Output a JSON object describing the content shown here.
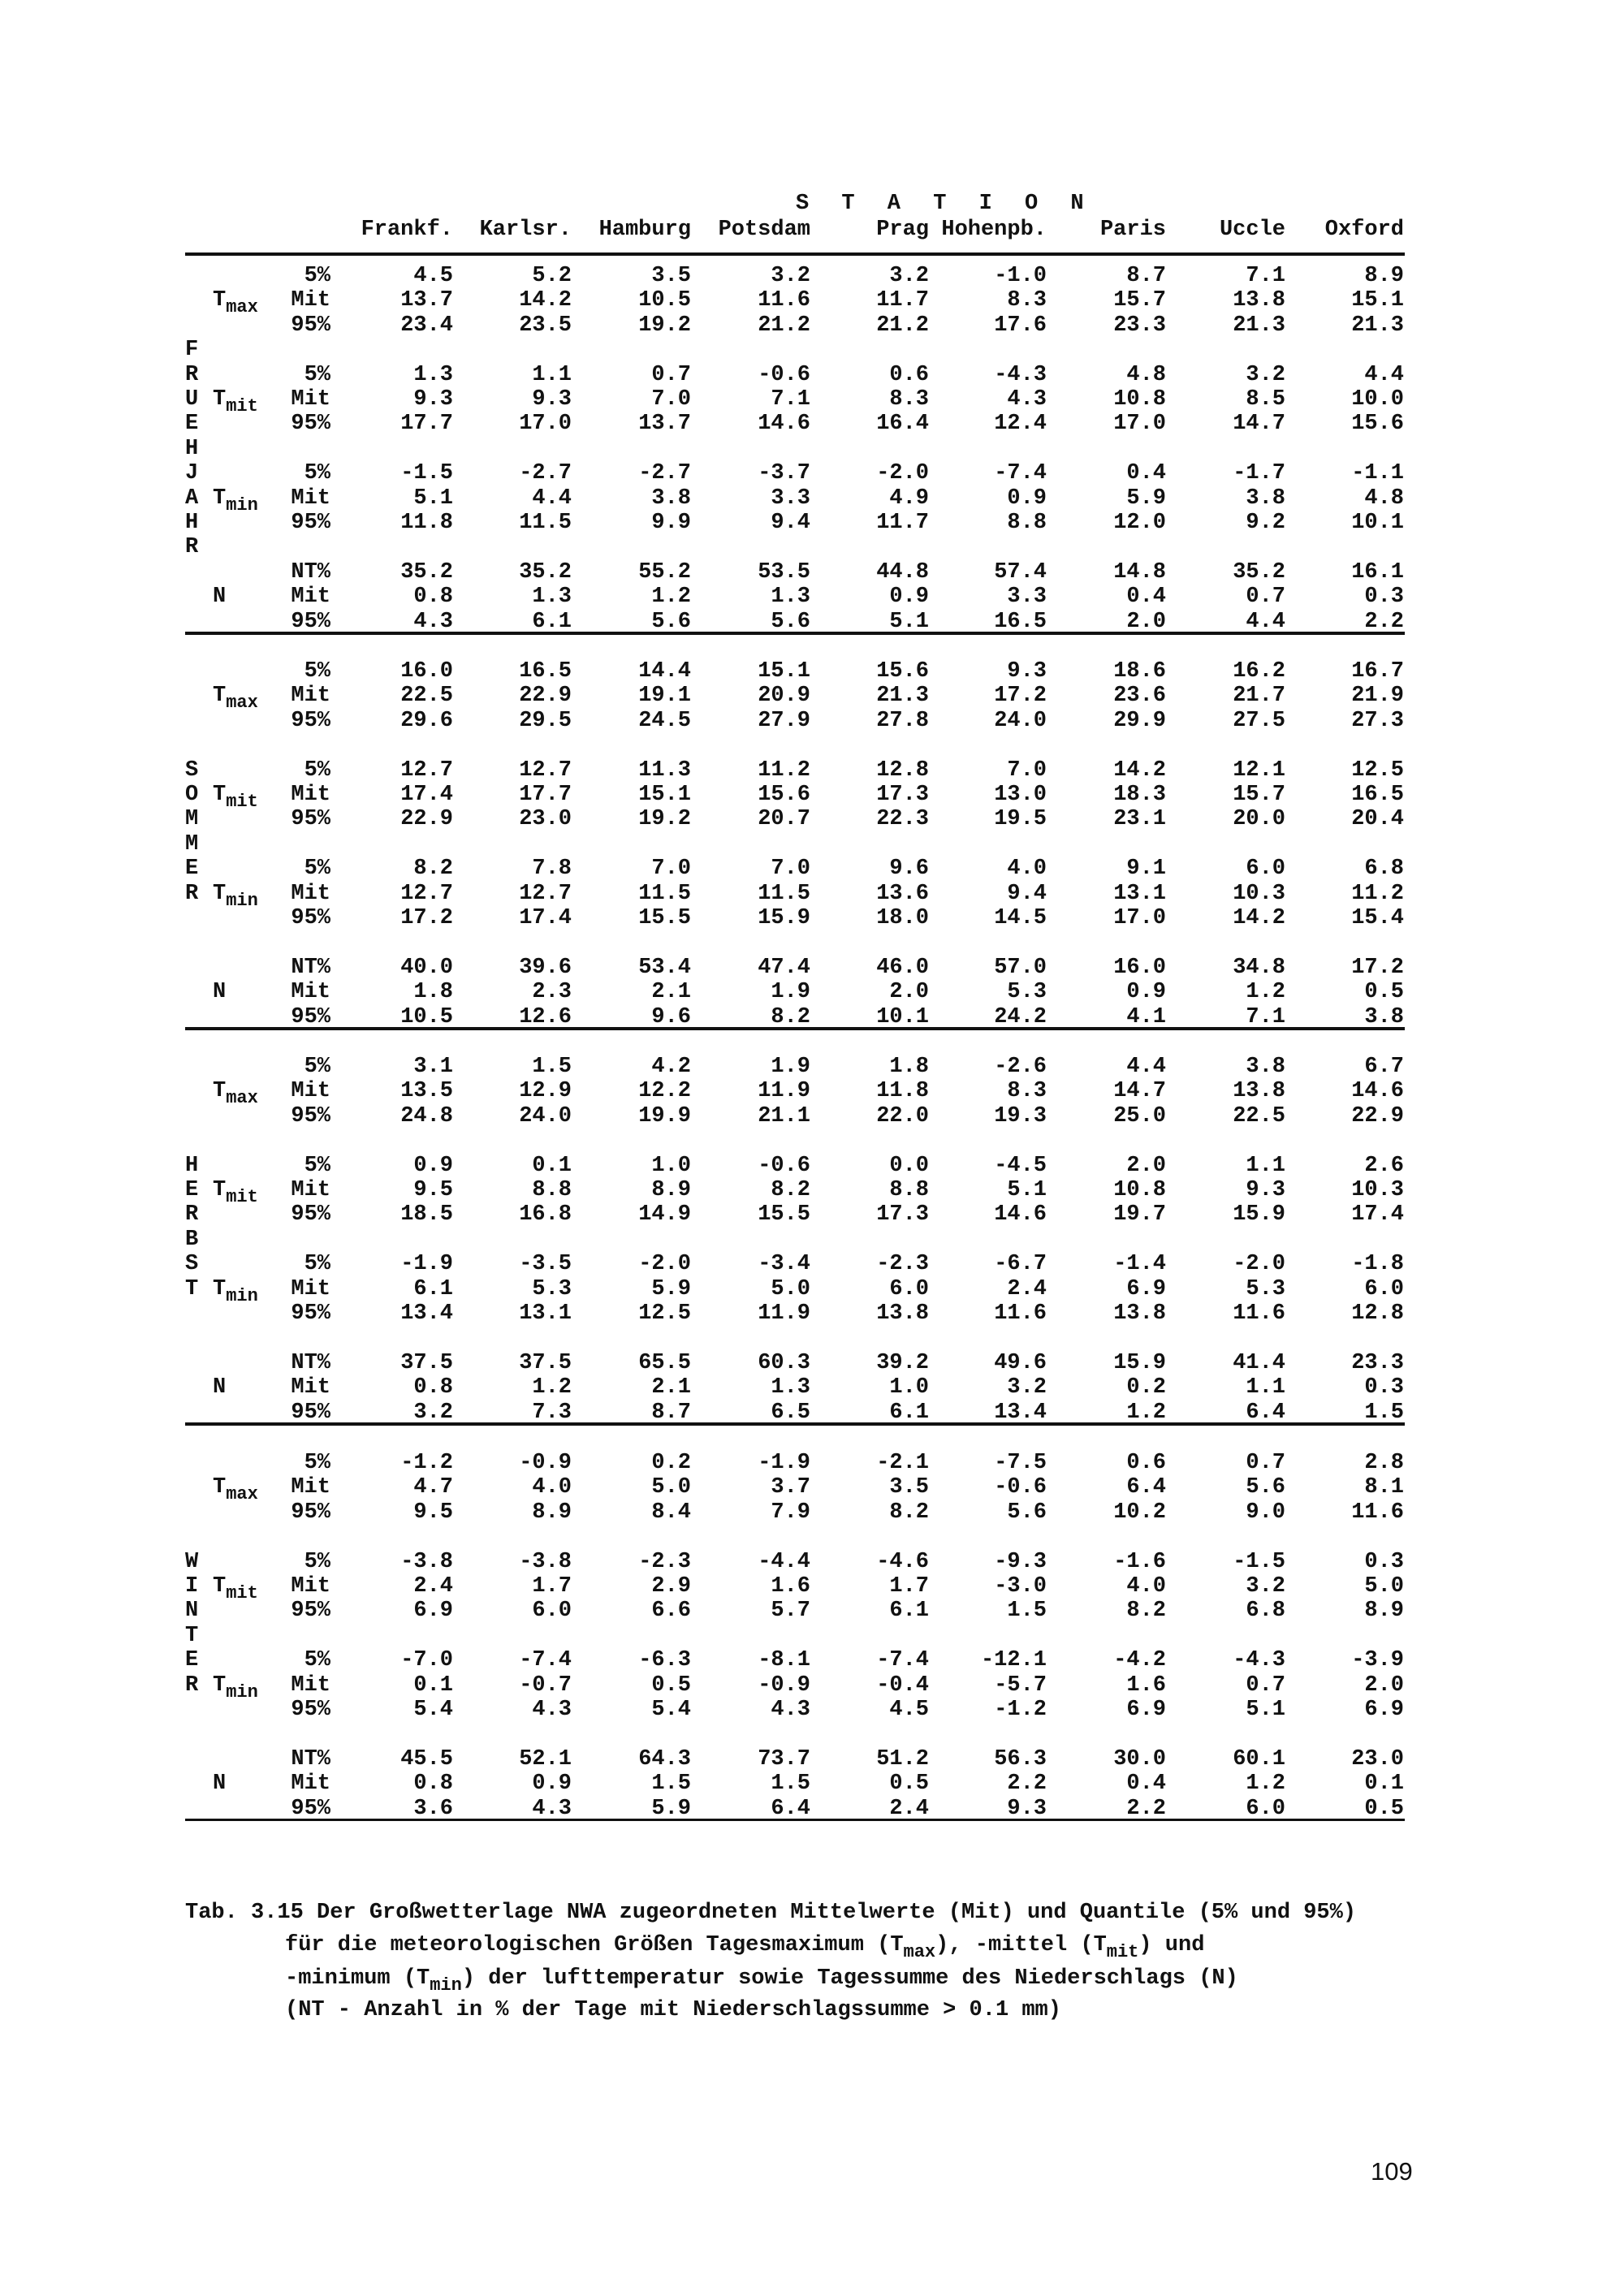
{
  "header": {
    "station_title": "S T A T I O N",
    "stations": [
      "Frankf.",
      "Karlsr.",
      "Hamburg",
      "Potsdam",
      "Prag",
      "Hohenpb.",
      "Paris",
      "Uccle",
      "Oxford"
    ]
  },
  "seasons": [
    {
      "letters": [
        "F",
        "R",
        "U",
        "E",
        "H",
        "J",
        "A",
        "H",
        "R"
      ],
      "letters_start_line": 3,
      "groups": [
        {
          "var": "T",
          "sub": "max",
          "rows": [
            {
              "stat": "5%",
              "values": [
                "4.5",
                "5.2",
                "3.5",
                "3.2",
                "3.2",
                "-1.0",
                "8.7",
                "7.1",
                "8.9"
              ]
            },
            {
              "stat": "Mit",
              "values": [
                "13.7",
                "14.2",
                "10.5",
                "11.6",
                "11.7",
                "8.3",
                "15.7",
                "13.8",
                "15.1"
              ]
            },
            {
              "stat": "95%",
              "values": [
                "23.4",
                "23.5",
                "19.2",
                "21.2",
                "21.2",
                "17.6",
                "23.3",
                "21.3",
                "21.3"
              ]
            }
          ]
        },
        {
          "var": "T",
          "sub": "mit",
          "rows": [
            {
              "stat": "5%",
              "values": [
                "1.3",
                "1.1",
                "0.7",
                "-0.6",
                "0.6",
                "-4.3",
                "4.8",
                "3.2",
                "4.4"
              ]
            },
            {
              "stat": "Mit",
              "values": [
                "9.3",
                "9.3",
                "7.0",
                "7.1",
                "8.3",
                "4.3",
                "10.8",
                "8.5",
                "10.0"
              ]
            },
            {
              "stat": "95%",
              "values": [
                "17.7",
                "17.0",
                "13.7",
                "14.6",
                "16.4",
                "12.4",
                "17.0",
                "14.7",
                "15.6"
              ]
            }
          ]
        },
        {
          "var": "T",
          "sub": "min",
          "rows": [
            {
              "stat": "5%",
              "values": [
                "-1.5",
                "-2.7",
                "-2.7",
                "-3.7",
                "-2.0",
                "-7.4",
                "0.4",
                "-1.7",
                "-1.1"
              ]
            },
            {
              "stat": "Mit",
              "values": [
                "5.1",
                "4.4",
                "3.8",
                "3.3",
                "4.9",
                "0.9",
                "5.9",
                "3.8",
                "4.8"
              ]
            },
            {
              "stat": "95%",
              "values": [
                "11.8",
                "11.5",
                "9.9",
                "9.4",
                "11.7",
                "8.8",
                "12.0",
                "9.2",
                "10.1"
              ]
            }
          ]
        },
        {
          "var": "N",
          "sub": "",
          "rows": [
            {
              "stat": "NT%",
              "values": [
                "35.2",
                "35.2",
                "55.2",
                "53.5",
                "44.8",
                "57.4",
                "14.8",
                "35.2",
                "16.1"
              ]
            },
            {
              "stat": "Mit",
              "values": [
                "0.8",
                "1.3",
                "1.2",
                "1.3",
                "0.9",
                "3.3",
                "0.4",
                "0.7",
                "0.3"
              ]
            },
            {
              "stat": "95%",
              "values": [
                "4.3",
                "6.1",
                "5.6",
                "5.6",
                "5.1",
                "16.5",
                "2.0",
                "4.4",
                "2.2"
              ]
            }
          ]
        }
      ]
    },
    {
      "letters": [
        "S",
        "O",
        "M",
        "M",
        "E",
        "R"
      ],
      "letters_start_line": 4,
      "groups": [
        {
          "var": "T",
          "sub": "max",
          "rows": [
            {
              "stat": "5%",
              "values": [
                "16.0",
                "16.5",
                "14.4",
                "15.1",
                "15.6",
                "9.3",
                "18.6",
                "16.2",
                "16.7"
              ]
            },
            {
              "stat": "Mit",
              "values": [
                "22.5",
                "22.9",
                "19.1",
                "20.9",
                "21.3",
                "17.2",
                "23.6",
                "21.7",
                "21.9"
              ]
            },
            {
              "stat": "95%",
              "values": [
                "29.6",
                "29.5",
                "24.5",
                "27.9",
                "27.8",
                "24.0",
                "29.9",
                "27.5",
                "27.3"
              ]
            }
          ]
        },
        {
          "var": "T",
          "sub": "mit",
          "rows": [
            {
              "stat": "5%",
              "values": [
                "12.7",
                "12.7",
                "11.3",
                "11.2",
                "12.8",
                "7.0",
                "14.2",
                "12.1",
                "12.5"
              ]
            },
            {
              "stat": "Mit",
              "values": [
                "17.4",
                "17.7",
                "15.1",
                "15.6",
                "17.3",
                "13.0",
                "18.3",
                "15.7",
                "16.5"
              ]
            },
            {
              "stat": "95%",
              "values": [
                "22.9",
                "23.0",
                "19.2",
                "20.7",
                "22.3",
                "19.5",
                "23.1",
                "20.0",
                "20.4"
              ]
            }
          ]
        },
        {
          "var": "T",
          "sub": "min",
          "rows": [
            {
              "stat": "5%",
              "values": [
                "8.2",
                "7.8",
                "7.0",
                "7.0",
                "9.6",
                "4.0",
                "9.1",
                "6.0",
                "6.8"
              ]
            },
            {
              "stat": "Mit",
              "values": [
                "12.7",
                "12.7",
                "11.5",
                "11.5",
                "13.6",
                "9.4",
                "13.1",
                "10.3",
                "11.2"
              ]
            },
            {
              "stat": "95%",
              "values": [
                "17.2",
                "17.4",
                "15.5",
                "15.9",
                "18.0",
                "14.5",
                "17.0",
                "14.2",
                "15.4"
              ]
            }
          ]
        },
        {
          "var": "N",
          "sub": "",
          "rows": [
            {
              "stat": "NT%",
              "values": [
                "40.0",
                "39.6",
                "53.4",
                "47.4",
                "46.0",
                "57.0",
                "16.0",
                "34.8",
                "17.2"
              ]
            },
            {
              "stat": "Mit",
              "values": [
                "1.8",
                "2.3",
                "2.1",
                "1.9",
                "2.0",
                "5.3",
                "0.9",
                "1.2",
                "0.5"
              ]
            },
            {
              "stat": "95%",
              "values": [
                "10.5",
                "12.6",
                "9.6",
                "8.2",
                "10.1",
                "24.2",
                "4.1",
                "7.1",
                "3.8"
              ]
            }
          ]
        }
      ]
    },
    {
      "letters": [
        "H",
        "E",
        "R",
        "B",
        "S",
        "T"
      ],
      "letters_start_line": 4,
      "groups": [
        {
          "var": "T",
          "sub": "max",
          "rows": [
            {
              "stat": "5%",
              "values": [
                "3.1",
                "1.5",
                "4.2",
                "1.9",
                "1.8",
                "-2.6",
                "4.4",
                "3.8",
                "6.7"
              ]
            },
            {
              "stat": "Mit",
              "values": [
                "13.5",
                "12.9",
                "12.2",
                "11.9",
                "11.8",
                "8.3",
                "14.7",
                "13.8",
                "14.6"
              ]
            },
            {
              "stat": "95%",
              "values": [
                "24.8",
                "24.0",
                "19.9",
                "21.1",
                "22.0",
                "19.3",
                "25.0",
                "22.5",
                "22.9"
              ]
            }
          ]
        },
        {
          "var": "T",
          "sub": "mit",
          "rows": [
            {
              "stat": "5%",
              "values": [
                "0.9",
                "0.1",
                "1.0",
                "-0.6",
                "0.0",
                "-4.5",
                "2.0",
                "1.1",
                "2.6"
              ]
            },
            {
              "stat": "Mit",
              "values": [
                "9.5",
                "8.8",
                "8.9",
                "8.2",
                "8.8",
                "5.1",
                "10.8",
                "9.3",
                "10.3"
              ]
            },
            {
              "stat": "95%",
              "values": [
                "18.5",
                "16.8",
                "14.9",
                "15.5",
                "17.3",
                "14.6",
                "19.7",
                "15.9",
                "17.4"
              ]
            }
          ]
        },
        {
          "var": "T",
          "sub": "min",
          "rows": [
            {
              "stat": "5%",
              "values": [
                "-1.9",
                "-3.5",
                "-2.0",
                "-3.4",
                "-2.3",
                "-6.7",
                "-1.4",
                "-2.0",
                "-1.8"
              ]
            },
            {
              "stat": "Mit",
              "values": [
                "6.1",
                "5.3",
                "5.9",
                "5.0",
                "6.0",
                "2.4",
                "6.9",
                "5.3",
                "6.0"
              ]
            },
            {
              "stat": "95%",
              "values": [
                "13.4",
                "13.1",
                "12.5",
                "11.9",
                "13.8",
                "11.6",
                "13.8",
                "11.6",
                "12.8"
              ]
            }
          ]
        },
        {
          "var": "N",
          "sub": "",
          "rows": [
            {
              "stat": "NT%",
              "values": [
                "37.5",
                "37.5",
                "65.5",
                "60.3",
                "39.2",
                "49.6",
                "15.9",
                "41.4",
                "23.3"
              ]
            },
            {
              "stat": "Mit",
              "values": [
                "0.8",
                "1.2",
                "2.1",
                "1.3",
                "1.0",
                "3.2",
                "0.2",
                "1.1",
                "0.3"
              ]
            },
            {
              "stat": "95%",
              "values": [
                "3.2",
                "7.3",
                "8.7",
                "6.5",
                "6.1",
                "13.4",
                "1.2",
                "6.4",
                "1.5"
              ]
            }
          ]
        }
      ]
    },
    {
      "letters": [
        "W",
        "I",
        "N",
        "T",
        "E",
        "R"
      ],
      "letters_start_line": 4,
      "groups": [
        {
          "var": "T",
          "sub": "max",
          "rows": [
            {
              "stat": "5%",
              "values": [
                "-1.2",
                "-0.9",
                "0.2",
                "-1.9",
                "-2.1",
                "-7.5",
                "0.6",
                "0.7",
                "2.8"
              ]
            },
            {
              "stat": "Mit",
              "values": [
                "4.7",
                "4.0",
                "5.0",
                "3.7",
                "3.5",
                "-0.6",
                "6.4",
                "5.6",
                "8.1"
              ]
            },
            {
              "stat": "95%",
              "values": [
                "9.5",
                "8.9",
                "8.4",
                "7.9",
                "8.2",
                "5.6",
                "10.2",
                "9.0",
                "11.6"
              ]
            }
          ]
        },
        {
          "var": "T",
          "sub": "mit",
          "rows": [
            {
              "stat": "5%",
              "values": [
                "-3.8",
                "-3.8",
                "-2.3",
                "-4.4",
                "-4.6",
                "-9.3",
                "-1.6",
                "-1.5",
                "0.3"
              ]
            },
            {
              "stat": "Mit",
              "values": [
                "2.4",
                "1.7",
                "2.9",
                "1.6",
                "1.7",
                "-3.0",
                "4.0",
                "3.2",
                "5.0"
              ]
            },
            {
              "stat": "95%",
              "values": [
                "6.9",
                "6.0",
                "6.6",
                "5.7",
                "6.1",
                "1.5",
                "8.2",
                "6.8",
                "8.9"
              ]
            }
          ]
        },
        {
          "var": "T",
          "sub": "min",
          "rows": [
            {
              "stat": "5%",
              "values": [
                "-7.0",
                "-7.4",
                "-6.3",
                "-8.1",
                "-7.4",
                "-12.1",
                "-4.2",
                "-4.3",
                "-3.9"
              ]
            },
            {
              "stat": "Mit",
              "values": [
                "0.1",
                "-0.7",
                "0.5",
                "-0.9",
                "-0.4",
                "-5.7",
                "1.6",
                "0.7",
                "2.0"
              ]
            },
            {
              "stat": "95%",
              "values": [
                "5.4",
                "4.3",
                "5.4",
                "4.3",
                "4.5",
                "-1.2",
                "6.9",
                "5.1",
                "6.9"
              ]
            }
          ]
        },
        {
          "var": "N",
          "sub": "",
          "rows": [
            {
              "stat": "NT%",
              "values": [
                "45.5",
                "52.1",
                "64.3",
                "73.7",
                "51.2",
                "56.3",
                "30.0",
                "60.1",
                "23.0"
              ]
            },
            {
              "stat": "Mit",
              "values": [
                "0.8",
                "0.9",
                "1.5",
                "1.5",
                "0.5",
                "2.2",
                "0.4",
                "1.2",
                "0.1"
              ]
            },
            {
              "stat": "95%",
              "values": [
                "3.6",
                "4.3",
                "5.9",
                "6.4",
                "2.4",
                "9.3",
                "2.2",
                "6.0",
                "0.5"
              ]
            }
          ]
        }
      ]
    }
  ],
  "caption": {
    "line1": "Tab. 3.15 Der Großwetterlage NWA zugeordneten Mittelwerte (Mit) und Quantile (5% und 95%)",
    "line2_a": "für die meteorologischen Größen Tagesmaximum (T",
    "line2_sub1": "max",
    "line2_b": "), -mittel (T",
    "line2_sub2": "mit",
    "line2_c": ") und",
    "line3_a": "-minimum (T",
    "line3_sub": "min",
    "line3_b": ") der lufttemperatur sowie Tagessumme des Niederschlags (N)",
    "line4": "(NT - Anzahl in % der Tage mit Niederschlagssumme > 0.1 mm)"
  },
  "page_number": "109"
}
